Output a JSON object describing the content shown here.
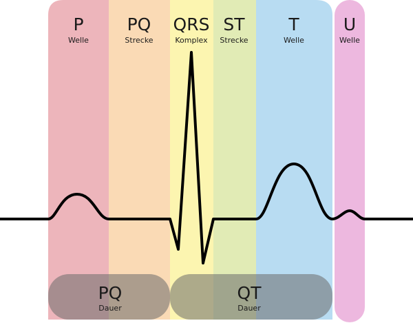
{
  "segments": [
    {
      "id": "p",
      "title": "P",
      "subtitle": "Welle",
      "color": "#e8a0a8"
    },
    {
      "id": "pq",
      "title": "PQ",
      "subtitle": "Strecke",
      "color": "#f8cfa0"
    },
    {
      "id": "qrs",
      "title": "QRS",
      "subtitle": "Komplex",
      "color": "#fbf29a"
    },
    {
      "id": "st",
      "title": "ST",
      "subtitle": "Strecke",
      "color": "#d8e6a0"
    },
    {
      "id": "t",
      "title": "T",
      "subtitle": "Welle",
      "color": "#a4d2ee"
    },
    {
      "id": "u",
      "title": "U",
      "subtitle": "Welle",
      "color": "#e8a4d6"
    }
  ],
  "durations": [
    {
      "id": "pq-dauer",
      "title": "PQ",
      "subtitle": "Dauer"
    },
    {
      "id": "qt-dauer",
      "title": "QT",
      "subtitle": "Dauer"
    }
  ],
  "colors": {
    "trace": "#000000",
    "duration_fill": "#6b6b6b"
  }
}
